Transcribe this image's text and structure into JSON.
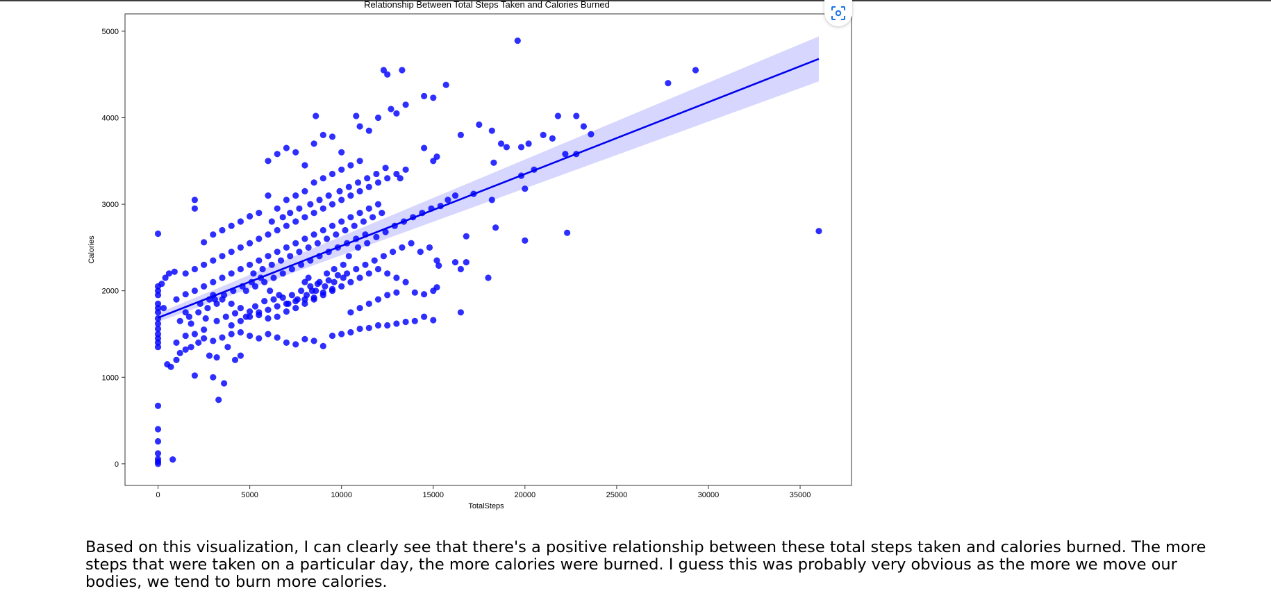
{
  "chart_data": {
    "type": "scatter",
    "title": "Relationship Between Total Steps Taken and Calories Burned",
    "xlabel": "TotalSteps",
    "ylabel": "Calories",
    "xlim": [
      -1800,
      37800
    ],
    "ylim": [
      -250,
      5200
    ],
    "xticks": [
      0,
      5000,
      10000,
      15000,
      20000,
      25000,
      30000,
      35000
    ],
    "yticks": [
      0,
      1000,
      2000,
      3000,
      4000,
      5000
    ],
    "grid": false,
    "point_color": "#0000ff",
    "regression": {
      "x": [
        0,
        36019
      ],
      "y": [
        1688,
        4680
      ],
      "ci_lower_end": 4420,
      "ci_upper_end": 4940,
      "ci_lower_start": 1640,
      "ci_upper_start": 1740,
      "color": "#0000ee",
      "band_color": "#d6d6ff"
    },
    "points": [
      [
        0,
        0
      ],
      [
        0,
        25
      ],
      [
        0,
        55
      ],
      [
        0,
        120
      ],
      [
        0,
        260
      ],
      [
        0,
        400
      ],
      [
        0,
        670
      ],
      [
        800,
        50
      ],
      [
        0,
        1350
      ],
      [
        0,
        1400
      ],
      [
        0,
        1450
      ],
      [
        0,
        1500
      ],
      [
        0,
        1560
      ],
      [
        0,
        1620
      ],
      [
        0,
        1680
      ],
      [
        0,
        1750
      ],
      [
        0,
        1800
      ],
      [
        0,
        1850
      ],
      [
        0,
        1950
      ],
      [
        0,
        2000
      ],
      [
        0,
        2050
      ],
      [
        0,
        2660
      ],
      [
        200,
        2080
      ],
      [
        400,
        2150
      ],
      [
        600,
        2200
      ],
      [
        900,
        2220
      ],
      [
        300,
        1800
      ],
      [
        500,
        1150
      ],
      [
        700,
        1120
      ],
      [
        1000,
        1200
      ],
      [
        1200,
        1280
      ],
      [
        1500,
        1320
      ],
      [
        1800,
        1350
      ],
      [
        2000,
        1020
      ],
      [
        2200,
        1400
      ],
      [
        2500,
        1450
      ],
      [
        2800,
        1250
      ],
      [
        3000,
        1000
      ],
      [
        3200,
        1230
      ],
      [
        3300,
        740
      ],
      [
        3600,
        930
      ],
      [
        3800,
        1350
      ],
      [
        4200,
        1200
      ],
      [
        4500,
        1250
      ],
      [
        1000,
        1400
      ],
      [
        1500,
        1480
      ],
      [
        2000,
        1500
      ],
      [
        2500,
        1550
      ],
      [
        3000,
        1420
      ],
      [
        3500,
        1460
      ],
      [
        4000,
        1500
      ],
      [
        4500,
        1520
      ],
      [
        5000,
        1480
      ],
      [
        5500,
        1450
      ],
      [
        6000,
        1500
      ],
      [
        6500,
        1460
      ],
      [
        7000,
        1400
      ],
      [
        7500,
        1380
      ],
      [
        8000,
        1440
      ],
      [
        8500,
        1420
      ],
      [
        9000,
        1360
      ],
      [
        9500,
        1480
      ],
      [
        10000,
        1500
      ],
      [
        10500,
        1520
      ],
      [
        11000,
        1560
      ],
      [
        11500,
        1570
      ],
      [
        12000,
        1600
      ],
      [
        12500,
        1600
      ],
      [
        13000,
        1620
      ],
      [
        13500,
        1640
      ],
      [
        14000,
        1650
      ],
      [
        14500,
        1700
      ],
      [
        15000,
        1660
      ],
      [
        16500,
        1750
      ],
      [
        1000,
        1900
      ],
      [
        1500,
        1960
      ],
      [
        2000,
        2000
      ],
      [
        2500,
        2050
      ],
      [
        3000,
        1950
      ],
      [
        3500,
        1900
      ],
      [
        4000,
        1850
      ],
      [
        4500,
        1800
      ],
      [
        5000,
        1760
      ],
      [
        5500,
        1720
      ],
      [
        6000,
        1680
      ],
      [
        6500,
        1700
      ],
      [
        7000,
        1760
      ],
      [
        7500,
        1800
      ],
      [
        8000,
        1850
      ],
      [
        8500,
        1900
      ],
      [
        9000,
        1950
      ],
      [
        9500,
        2000
      ],
      [
        10000,
        2050
      ],
      [
        10500,
        2100
      ],
      [
        11000,
        2150
      ],
      [
        11500,
        2200
      ],
      [
        12000,
        2250
      ],
      [
        12500,
        2200
      ],
      [
        13000,
        2150
      ],
      [
        13500,
        2100
      ],
      [
        14000,
        1980
      ],
      [
        14500,
        1960
      ],
      [
        15000,
        2000
      ],
      [
        15200,
        2040
      ],
      [
        18000,
        2150
      ],
      [
        3200,
        1650
      ],
      [
        3700,
        1700
      ],
      [
        4200,
        1740
      ],
      [
        4800,
        1700
      ],
      [
        5300,
        1820
      ],
      [
        5800,
        1880
      ],
      [
        6300,
        1900
      ],
      [
        6800,
        1920
      ],
      [
        7300,
        1950
      ],
      [
        7800,
        2000
      ],
      [
        8300,
        2050
      ],
      [
        8800,
        2100
      ],
      [
        9300,
        2120
      ],
      [
        9800,
        2180
      ],
      [
        10300,
        2200
      ],
      [
        10800,
        2250
      ],
      [
        11300,
        2300
      ],
      [
        11800,
        2350
      ],
      [
        12300,
        2400
      ],
      [
        12800,
        2450
      ],
      [
        13300,
        2500
      ],
      [
        13800,
        2550
      ],
      [
        14300,
        2450
      ],
      [
        14800,
        2500
      ],
      [
        1500,
        2200
      ],
      [
        2000,
        2250
      ],
      [
        2500,
        2300
      ],
      [
        3000,
        2350
      ],
      [
        3500,
        2400
      ],
      [
        4000,
        2450
      ],
      [
        4500,
        2500
      ],
      [
        5000,
        2550
      ],
      [
        5500,
        2600
      ],
      [
        6000,
        2650
      ],
      [
        6500,
        2700
      ],
      [
        7000,
        2750
      ],
      [
        7500,
        2800
      ],
      [
        8000,
        2850
      ],
      [
        8500,
        2900
      ],
      [
        9000,
        2950
      ],
      [
        9500,
        3000
      ],
      [
        10000,
        3050
      ],
      [
        10500,
        3100
      ],
      [
        11000,
        3150
      ],
      [
        11500,
        3200
      ],
      [
        12000,
        3250
      ],
      [
        12500,
        3300
      ],
      [
        13000,
        3350
      ],
      [
        13500,
        3400
      ],
      [
        2000,
        3050
      ],
      [
        2000,
        2950
      ],
      [
        2500,
        2560
      ],
      [
        3000,
        2650
      ],
      [
        3500,
        2700
      ],
      [
        4000,
        2750
      ],
      [
        4500,
        2800
      ],
      [
        5000,
        2860
      ],
      [
        5500,
        2900
      ],
      [
        6000,
        3100
      ],
      [
        6500,
        2950
      ],
      [
        7000,
        3050
      ],
      [
        7500,
        3100
      ],
      [
        8000,
        3150
      ],
      [
        8500,
        3250
      ],
      [
        9000,
        3300
      ],
      [
        9500,
        3350
      ],
      [
        10000,
        3400
      ],
      [
        10500,
        3450
      ],
      [
        11000,
        3500
      ],
      [
        6000,
        3500
      ],
      [
        6500,
        3580
      ],
      [
        7000,
        3650
      ],
      [
        7500,
        3600
      ],
      [
        8000,
        3450
      ],
      [
        8500,
        3700
      ],
      [
        9000,
        3800
      ],
      [
        9500,
        3780
      ],
      [
        10000,
        3600
      ],
      [
        11000,
        3900
      ],
      [
        11500,
        3850
      ],
      [
        12000,
        4000
      ],
      [
        12300,
        4550
      ],
      [
        12500,
        4500
      ],
      [
        13300,
        4550
      ],
      [
        12700,
        4100
      ],
      [
        13500,
        4150
      ],
      [
        14500,
        4250
      ],
      [
        15000,
        4230
      ],
      [
        15700,
        4380
      ],
      [
        19600,
        4890
      ],
      [
        13000,
        4050
      ],
      [
        8600,
        4020
      ],
      [
        10800,
        4020
      ],
      [
        15200,
        3550
      ],
      [
        15000,
        3500
      ],
      [
        14500,
        3650
      ],
      [
        16500,
        3800
      ],
      [
        17500,
        3920
      ],
      [
        18200,
        3850
      ],
      [
        18700,
        3700
      ],
      [
        19000,
        3660
      ],
      [
        19800,
        3660
      ],
      [
        20200,
        3700
      ],
      [
        21000,
        3800
      ],
      [
        21800,
        4020
      ],
      [
        22800,
        4020
      ],
      [
        23200,
        3900
      ],
      [
        23600,
        3810
      ],
      [
        22200,
        3580
      ],
      [
        22800,
        3580
      ],
      [
        21500,
        3760
      ],
      [
        20500,
        3400
      ],
      [
        19800,
        3330
      ],
      [
        18300,
        3480
      ],
      [
        20000,
        3180
      ],
      [
        18200,
        3050
      ],
      [
        17200,
        3120
      ],
      [
        18400,
        2730
      ],
      [
        20000,
        2580
      ],
      [
        22300,
        2670
      ],
      [
        16800,
        2630
      ],
      [
        15200,
        2350
      ],
      [
        15300,
        2290
      ],
      [
        16200,
        2330
      ],
      [
        16800,
        2330
      ],
      [
        16500,
        2250
      ],
      [
        27800,
        4400
      ],
      [
        29300,
        4550
      ],
      [
        36019,
        2690
      ],
      [
        8000,
        2100
      ],
      [
        8200,
        2150
      ],
      [
        8400,
        2000
      ],
      [
        8700,
        2080
      ],
      [
        9200,
        2200
      ],
      [
        9600,
        2250
      ],
      [
        10100,
        2300
      ],
      [
        10400,
        2400
      ],
      [
        10900,
        2500
      ],
      [
        11400,
        2550
      ],
      [
        11900,
        2620
      ],
      [
        12400,
        2680
      ],
      [
        12900,
        2750
      ],
      [
        13400,
        2800
      ],
      [
        13900,
        2850
      ],
      [
        14400,
        2900
      ],
      [
        14900,
        2950
      ],
      [
        15400,
        2980
      ],
      [
        15800,
        3050
      ],
      [
        16200,
        3100
      ],
      [
        5200,
        2200
      ],
      [
        5700,
        2250
      ],
      [
        6200,
        2300
      ],
      [
        6700,
        2350
      ],
      [
        7200,
        2400
      ],
      [
        7700,
        2450
      ],
      [
        8200,
        2500
      ],
      [
        8700,
        2550
      ],
      [
        9200,
        2600
      ],
      [
        9700,
        2650
      ],
      [
        10200,
        2700
      ],
      [
        10700,
        2750
      ],
      [
        11200,
        2800
      ],
      [
        11700,
        2850
      ],
      [
        12200,
        2900
      ],
      [
        3100,
        1900
      ],
      [
        3600,
        1950
      ],
      [
        4100,
        2000
      ],
      [
        4600,
        2050
      ],
      [
        5100,
        2100
      ],
      [
        5600,
        2150
      ],
      [
        6100,
        2000
      ],
      [
        6600,
        1950
      ],
      [
        7100,
        1850
      ],
      [
        7600,
        1900
      ],
      [
        8100,
        1950
      ],
      [
        8600,
        2000
      ],
      [
        9100,
        2050
      ],
      [
        9600,
        2100
      ],
      [
        10100,
        2150
      ],
      [
        4000,
        1600
      ],
      [
        4500,
        1650
      ],
      [
        5000,
        1700
      ],
      [
        5500,
        1750
      ],
      [
        6000,
        1780
      ],
      [
        6500,
        1820
      ],
      [
        7000,
        1850
      ],
      [
        7500,
        1880
      ],
      [
        8000,
        1900
      ],
      [
        8500,
        1920
      ],
      [
        9000,
        1980
      ],
      [
        9500,
        2020
      ],
      [
        10500,
        1750
      ],
      [
        11000,
        1800
      ],
      [
        11500,
        1850
      ],
      [
        12000,
        1900
      ],
      [
        12500,
        1950
      ],
      [
        13000,
        1980
      ],
      [
        3000,
        2100
      ],
      [
        3500,
        2150
      ],
      [
        4000,
        2200
      ],
      [
        4500,
        2250
      ],
      [
        5000,
        2300
      ],
      [
        5500,
        2350
      ],
      [
        6000,
        2400
      ],
      [
        6500,
        2450
      ],
      [
        7000,
        2500
      ],
      [
        7500,
        2550
      ],
      [
        8000,
        2600
      ],
      [
        8500,
        2650
      ],
      [
        9000,
        2700
      ],
      [
        9500,
        2750
      ],
      [
        10000,
        2800
      ],
      [
        10500,
        2850
      ],
      [
        11000,
        2900
      ],
      [
        11500,
        2950
      ],
      [
        12000,
        3000
      ],
      [
        1200,
        1650
      ],
      [
        1700,
        1700
      ],
      [
        2200,
        1750
      ],
      [
        2700,
        1800
      ],
      [
        3200,
        1850
      ],
      [
        1500,
        1750
      ],
      [
        2300,
        1850
      ],
      [
        2800,
        1900
      ],
      [
        1800,
        1620
      ],
      [
        2600,
        1680
      ],
      [
        6200,
        2800
      ],
      [
        6800,
        2850
      ],
      [
        7200,
        2900
      ],
      [
        7700,
        2950
      ],
      [
        8300,
        3000
      ],
      [
        8800,
        3050
      ],
      [
        9300,
        3100
      ],
      [
        9900,
        3150
      ],
      [
        10400,
        3200
      ],
      [
        10900,
        3250
      ],
      [
        11400,
        3300
      ],
      [
        11900,
        3350
      ],
      [
        12400,
        3420
      ],
      [
        13200,
        3300
      ],
      [
        4800,
        2000
      ],
      [
        5300,
        2050
      ],
      [
        5800,
        2100
      ],
      [
        6300,
        2150
      ],
      [
        6800,
        2200
      ],
      [
        7300,
        2250
      ],
      [
        7800,
        2300
      ],
      [
        8300,
        2350
      ],
      [
        8800,
        2400
      ],
      [
        9300,
        2450
      ],
      [
        9800,
        2500
      ],
      [
        10300,
        2550
      ],
      [
        10800,
        2600
      ],
      [
        11300,
        2650
      ]
    ]
  },
  "lens": {
    "icon": "lens-scan-icon",
    "color": "#1a73e8"
  },
  "commentary": "Based on this visualization, I can clearly see that there's a positive relationship between these total steps taken and calories burned. The more steps that were taken on a particular day, the more calories were burned. I guess this was probably very obvious as the more we move our bodies, we tend to burn more calories."
}
